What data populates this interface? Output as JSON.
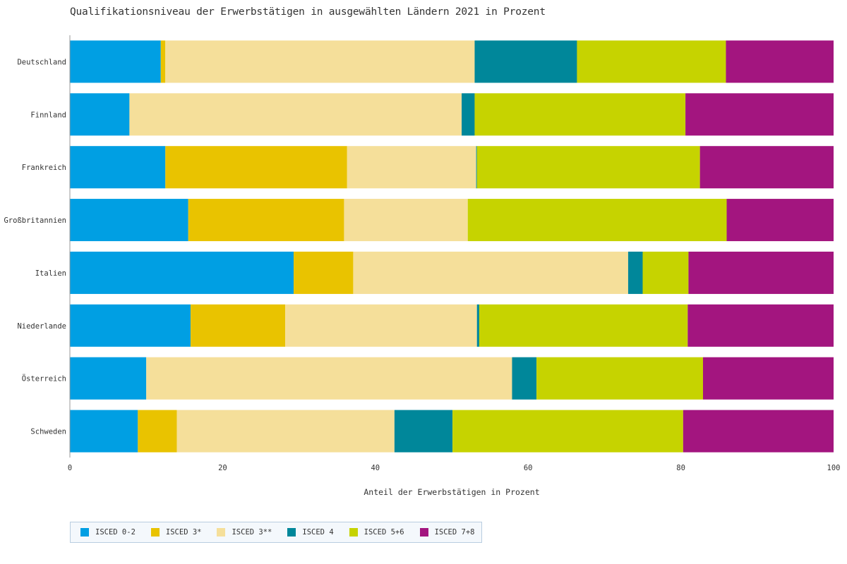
{
  "chart_data": {
    "type": "bar",
    "orientation": "horizontal",
    "stacked": true,
    "title": "Qualifikationsniveau der Erwerbstätigen in ausgewählten Ländern 2021 in Prozent",
    "xlabel": "Anteil der Erwerbstätigen in Prozent",
    "ylabel": "",
    "xlim": [
      0,
      100
    ],
    "xticks": [
      0,
      20,
      40,
      60,
      80,
      100
    ],
    "grid": false,
    "legend_position": "bottom-left",
    "categories": [
      "Deutschland",
      "Finnland",
      "Frankreich",
      "Großbritannien",
      "Italien",
      "Niederlande",
      "Österreich",
      "Schweden"
    ],
    "series": [
      {
        "name": "ISCED 0-2",
        "color": "#009fe3",
        "values": [
          11.9,
          7.8,
          12.5,
          15.5,
          29.3,
          15.8,
          10.0,
          8.9
        ]
      },
      {
        "name": "ISCED 3*",
        "color": "#e9c300",
        "values": [
          0.6,
          0.0,
          23.8,
          20.4,
          7.8,
          12.4,
          0.0,
          5.1
        ]
      },
      {
        "name": "ISCED 3**",
        "color": "#f5df9a",
        "values": [
          40.5,
          43.5,
          16.9,
          16.2,
          36.0,
          25.1,
          47.9,
          28.5
        ]
      },
      {
        "name": "ISCED 4",
        "color": "#00879a",
        "values": [
          13.4,
          1.7,
          0.1,
          0.0,
          1.9,
          0.3,
          3.2,
          7.6
        ]
      },
      {
        "name": "ISCED 5+6",
        "color": "#c6d300",
        "values": [
          19.5,
          27.6,
          29.2,
          33.9,
          6.0,
          27.3,
          21.8,
          30.2
        ]
      },
      {
        "name": "ISCED 7+8",
        "color": "#a3157f",
        "values": [
          14.1,
          19.4,
          17.5,
          14.0,
          19.0,
          19.1,
          17.1,
          19.7
        ]
      }
    ]
  }
}
